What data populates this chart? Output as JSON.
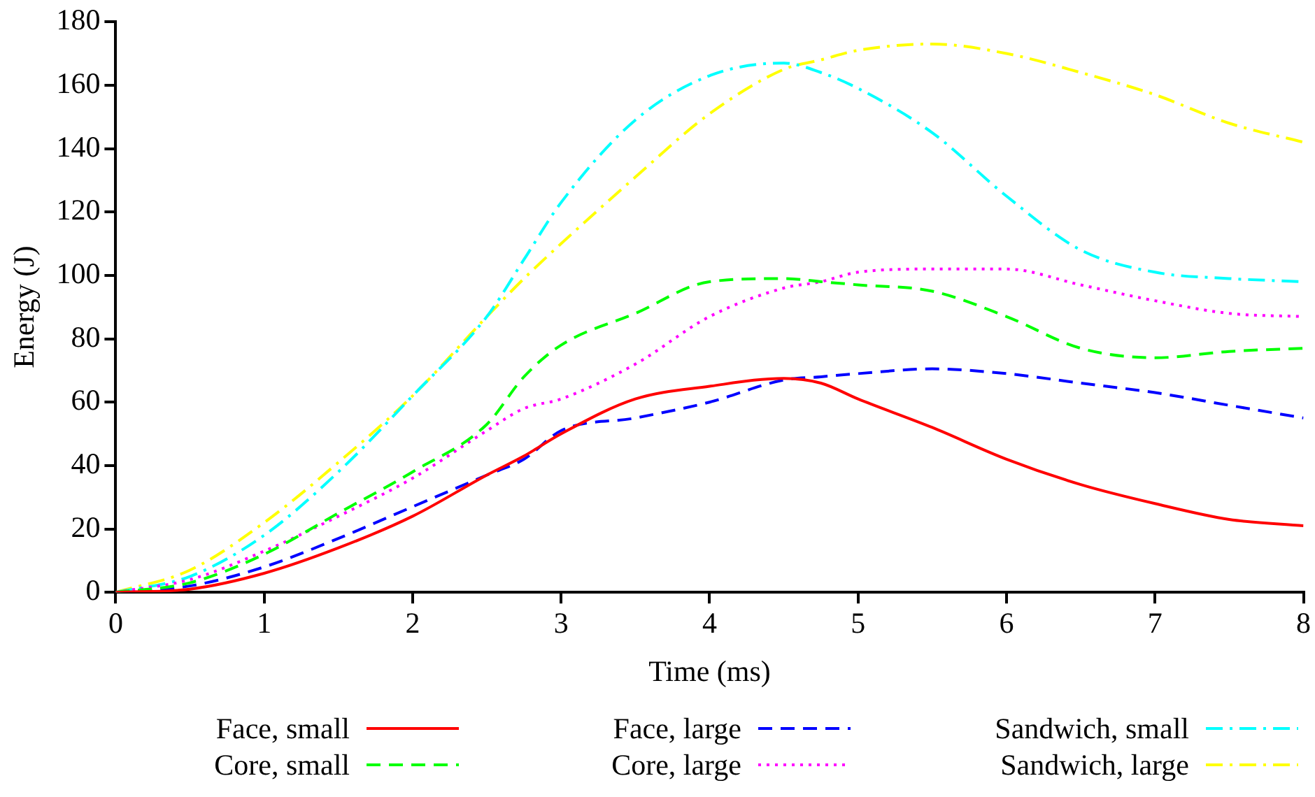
{
  "chart_data": {
    "type": "line",
    "xlabel": "Time (ms)",
    "ylabel": "Energy (J)",
    "xlim": [
      0,
      8
    ],
    "xticks": [
      0,
      1,
      2,
      3,
      4,
      5,
      6,
      7,
      8
    ],
    "ylim": [
      0,
      180
    ],
    "yticks": [
      0,
      20,
      40,
      60,
      80,
      100,
      120,
      140,
      160,
      180
    ],
    "grid": false,
    "legend": "bottom",
    "marker": "none",
    "x": [
      0,
      0.5,
      1,
      1.5,
      2,
      2.5,
      2.75,
      3,
      3.5,
      4,
      4.5,
      4.75,
      5,
      5.5,
      6,
      6.5,
      7,
      7.5,
      8
    ],
    "series": [
      {
        "name": "Face, small",
        "color": "#ff0000",
        "line_style": "solid",
        "values": [
          0,
          1,
          6,
          14,
          24,
          37,
          43,
          50,
          61,
          65,
          67.5,
          66,
          61,
          52,
          42,
          34,
          28,
          23,
          21
        ]
      },
      {
        "name": "Core, small",
        "color": "#00ff00",
        "line_style": "dashed",
        "values": [
          0,
          3,
          12,
          25,
          38,
          53,
          68,
          78,
          88,
          98,
          99,
          98,
          97,
          95,
          87,
          77,
          74,
          76,
          77
        ]
      },
      {
        "name": "Face, large",
        "color": "#0000ff",
        "line_style": "dashed",
        "values": [
          0,
          2,
          8,
          17,
          27,
          37,
          42,
          51,
          55,
          60,
          67,
          68,
          69,
          70.5,
          69,
          66,
          63,
          59,
          55
        ]
      },
      {
        "name": "Core, large",
        "color": "#ff00ff",
        "line_style": "dotted",
        "values": [
          0,
          4,
          13,
          24,
          36,
          51,
          58,
          61,
          72,
          87,
          96,
          98,
          101,
          102,
          102,
          97,
          92,
          88,
          87
        ]
      },
      {
        "name": "Sandwich, small",
        "color": "#00ffff",
        "line_style": "dashdot",
        "values": [
          0,
          5,
          18,
          38,
          62,
          87,
          105,
          123,
          149,
          163,
          167,
          164,
          159,
          145,
          125,
          108,
          101,
          99,
          98
        ]
      },
      {
        "name": "Sandwich, large",
        "color": "#ffff00",
        "line_style": "dashdot",
        "values": [
          0,
          7,
          22,
          41,
          62,
          87,
          99,
          110,
          131,
          151,
          165,
          168,
          171,
          173,
          170,
          164,
          157,
          148,
          142
        ]
      }
    ]
  }
}
